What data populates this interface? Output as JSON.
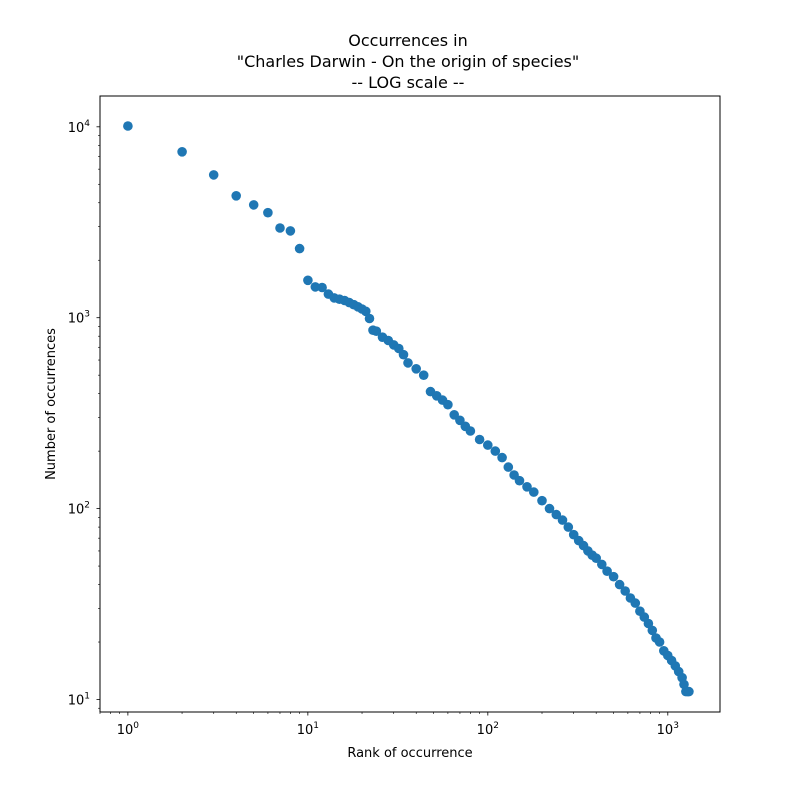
{
  "chart_data": {
    "type": "scatter",
    "title_lines": [
      "Occurrences in",
      "\"Charles Darwin - On the origin of species\"",
      "-- LOG scale --"
    ],
    "xlabel": "Rank of occurrence",
    "ylabel": "Number of occurrences",
    "x_scale": "log",
    "y_scale": "log",
    "xlim": [
      0.7,
      1950
    ],
    "ylim": [
      8.6,
      14500
    ],
    "x_ticks": [
      {
        "base": "10",
        "exp": "0",
        "value": 1
      },
      {
        "base": "10",
        "exp": "1",
        "value": 10
      },
      {
        "base": "10",
        "exp": "2",
        "value": 100
      },
      {
        "base": "10",
        "exp": "3",
        "value": 1000
      }
    ],
    "y_ticks": [
      {
        "base": "10",
        "exp": "1",
        "value": 10
      },
      {
        "base": "10",
        "exp": "2",
        "value": 100
      },
      {
        "base": "10",
        "exp": "3",
        "value": 1000
      },
      {
        "base": "10",
        "exp": "4",
        "value": 10000
      }
    ],
    "grid": false,
    "marker_color": "#1f77b4",
    "points": [
      [
        1,
        10100
      ],
      [
        2,
        7400
      ],
      [
        3,
        5600
      ],
      [
        4,
        4350
      ],
      [
        5,
        3900
      ],
      [
        6,
        3550
      ],
      [
        7,
        2950
      ],
      [
        8,
        2850
      ],
      [
        9,
        2300
      ],
      [
        10,
        1570
      ],
      [
        11,
        1450
      ],
      [
        12,
        1440
      ],
      [
        13,
        1330
      ],
      [
        14,
        1270
      ],
      [
        15,
        1250
      ],
      [
        16,
        1230
      ],
      [
        17,
        1200
      ],
      [
        18,
        1170
      ],
      [
        19,
        1140
      ],
      [
        20,
        1110
      ],
      [
        21,
        1080
      ],
      [
        22,
        990
      ],
      [
        23,
        860
      ],
      [
        24,
        850
      ],
      [
        26,
        790
      ],
      [
        28,
        760
      ],
      [
        30,
        720
      ],
      [
        32,
        690
      ],
      [
        34,
        640
      ],
      [
        36,
        580
      ],
      [
        40,
        540
      ],
      [
        44,
        500
      ],
      [
        48,
        410
      ],
      [
        52,
        390
      ],
      [
        56,
        370
      ],
      [
        60,
        350
      ],
      [
        65,
        310
      ],
      [
        70,
        290
      ],
      [
        75,
        270
      ],
      [
        80,
        255
      ],
      [
        90,
        230
      ],
      [
        100,
        215
      ],
      [
        110,
        200
      ],
      [
        120,
        185
      ],
      [
        130,
        165
      ],
      [
        140,
        150
      ],
      [
        150,
        140
      ],
      [
        165,
        130
      ],
      [
        180,
        122
      ],
      [
        200,
        110
      ],
      [
        220,
        100
      ],
      [
        240,
        93
      ],
      [
        260,
        87
      ],
      [
        280,
        80
      ],
      [
        300,
        73
      ],
      [
        320,
        68
      ],
      [
        340,
        64
      ],
      [
        360,
        60
      ],
      [
        380,
        57
      ],
      [
        400,
        55
      ],
      [
        430,
        51
      ],
      [
        460,
        47
      ],
      [
        500,
        44
      ],
      [
        540,
        40
      ],
      [
        580,
        37
      ],
      [
        620,
        34
      ],
      [
        660,
        32
      ],
      [
        700,
        29
      ],
      [
        740,
        27
      ],
      [
        780,
        25
      ],
      [
        820,
        23
      ],
      [
        860,
        21
      ],
      [
        900,
        20
      ],
      [
        950,
        18
      ],
      [
        1000,
        17
      ],
      [
        1050,
        16
      ],
      [
        1100,
        15
      ],
      [
        1150,
        14
      ],
      [
        1200,
        13
      ],
      [
        1230,
        12
      ],
      [
        1260,
        11
      ],
      [
        1290,
        11
      ],
      [
        1310,
        11
      ]
    ]
  }
}
